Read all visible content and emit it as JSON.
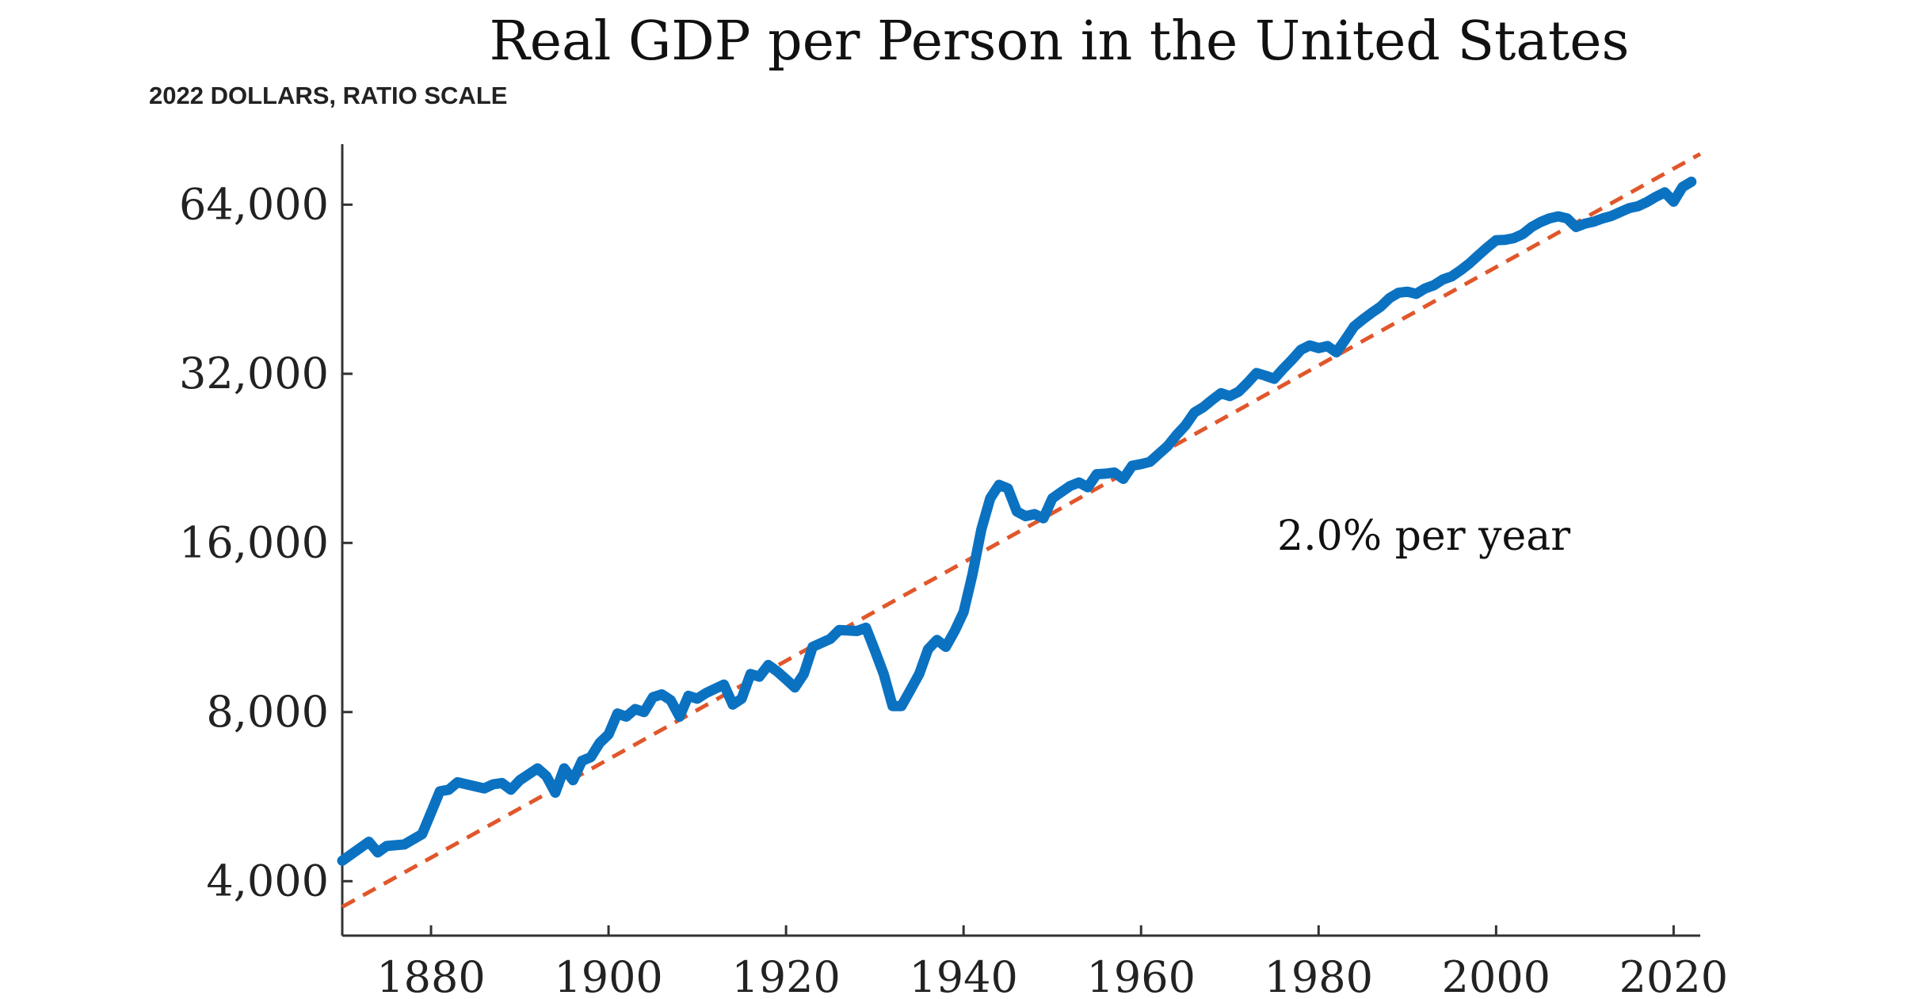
{
  "chart_data": {
    "type": "line",
    "title": "Real GDP per Person in the United States",
    "subtitle": "2022 DOLLARS, RATIO SCALE",
    "xlabel": "",
    "ylabel": "",
    "y_scale": "log2",
    "xlim": [
      1870,
      2023
    ],
    "ylim": [
      3200,
      82000
    ],
    "x_ticks": [
      1880,
      1900,
      1920,
      1940,
      1960,
      1980,
      2000,
      2020
    ],
    "x_tick_labels": [
      "1880",
      "1900",
      "1920",
      "1940",
      "1960",
      "1980",
      "2000",
      "2020"
    ],
    "y_ticks": [
      4000,
      8000,
      16000,
      32000,
      64000
    ],
    "y_tick_labels": [
      "4,000",
      "8,000",
      "16,000",
      "32,000",
      "64,000"
    ],
    "annotation": "2.0% per year",
    "colors": {
      "series": "#0B72C2",
      "trend": "#E0572B",
      "axis": "#333333"
    },
    "series": [
      {
        "name": "Real GDP per person",
        "style": "solid",
        "x": [
          1870,
          1873,
          1874,
          1875,
          1877,
          1879,
          1881,
          1882,
          1883,
          1886,
          1887,
          1888,
          1889,
          1890,
          1892,
          1893,
          1894,
          1895,
          1896,
          1897,
          1898,
          1899,
          1900,
          1901,
          1902,
          1903,
          1904,
          1905,
          1906,
          1907,
          1908,
          1909,
          1910,
          1911,
          1912,
          1913,
          1914,
          1915,
          1916,
          1917,
          1918,
          1919,
          1920,
          1921,
          1922,
          1923,
          1925,
          1926,
          1928,
          1929,
          1930,
          1931,
          1932,
          1933,
          1934,
          1935,
          1936,
          1937,
          1938,
          1939,
          1940,
          1941,
          1942,
          1943,
          1944,
          1945,
          1946,
          1947,
          1948,
          1949,
          1950,
          1951,
          1952,
          1953,
          1954,
          1955,
          1956,
          1957,
          1958,
          1959,
          1960,
          1961,
          1962,
          1963,
          1964,
          1965,
          1966,
          1967,
          1968,
          1969,
          1970,
          1971,
          1972,
          1973,
          1974,
          1975,
          1976,
          1977,
          1978,
          1979,
          1980,
          1981,
          1982,
          1983,
          1984,
          1985,
          1986,
          1987,
          1988,
          1989,
          1990,
          1991,
          1992,
          1993,
          1994,
          1995,
          1996,
          1997,
          1998,
          1999,
          2000,
          2001,
          2002,
          2003,
          2004,
          2005,
          2006,
          2007,
          2008,
          2009,
          2010,
          2011,
          2012,
          2013,
          2014,
          2015,
          2016,
          2017,
          2018,
          2019,
          2020,
          2021,
          2022
        ],
        "y": [
          4350,
          4700,
          4500,
          4620,
          4650,
          4850,
          5780,
          5820,
          6000,
          5850,
          5950,
          5980,
          5820,
          6050,
          6350,
          6150,
          5750,
          6350,
          6050,
          6550,
          6650,
          7050,
          7300,
          7950,
          7850,
          8100,
          8000,
          8500,
          8600,
          8400,
          7850,
          8550,
          8450,
          8650,
          8800,
          8950,
          8250,
          8450,
          9350,
          9250,
          9700,
          9450,
          9150,
          8850,
          9350,
          10450,
          10800,
          11200,
          11150,
          11300,
          10300,
          9350,
          8200,
          8200,
          8750,
          9350,
          10350,
          10750,
          10450,
          11150,
          12050,
          14050,
          16900,
          19200,
          20300,
          20000,
          18200,
          17850,
          18000,
          17700,
          19200,
          19700,
          20200,
          20500,
          20100,
          21200,
          21250,
          21350,
          20800,
          21950,
          22100,
          22300,
          23050,
          23800,
          24900,
          25900,
          27300,
          27900,
          28750,
          29550,
          29200,
          29750,
          30850,
          32100,
          31750,
          31350,
          32650,
          33900,
          35300,
          35950,
          35550,
          35850,
          34950,
          36800,
          38850,
          40000,
          41100,
          42150,
          43650,
          44600,
          44800,
          44400,
          45400,
          46000,
          47100,
          47700,
          48900,
          50300,
          52000,
          53700,
          55300,
          55400,
          55800,
          56700,
          58400,
          59600,
          60500,
          61000,
          60500,
          58400,
          59200,
          59700,
          60500,
          61100,
          62100,
          63100,
          63600,
          64700,
          66100,
          67300,
          64800,
          68800,
          70300
        ]
      },
      {
        "name": "Trend (2.0% per year)",
        "style": "dashed",
        "x": [
          1870,
          2023
        ],
        "y": [
          3600,
          78800
        ]
      }
    ]
  }
}
